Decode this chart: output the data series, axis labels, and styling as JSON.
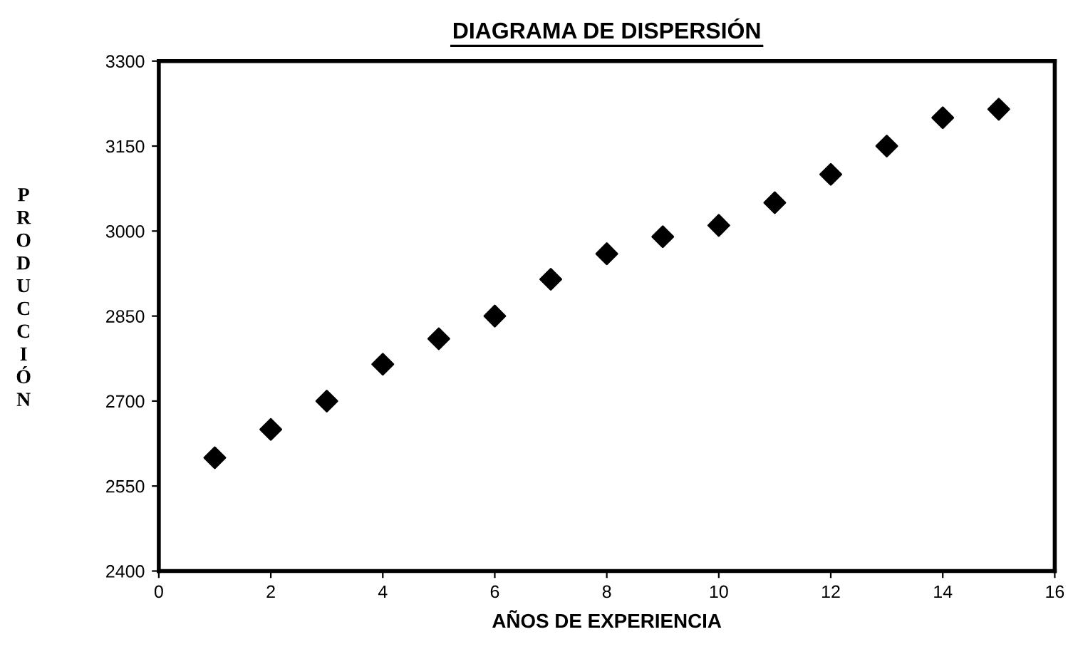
{
  "chart_data": {
    "type": "scatter",
    "title": "DIAGRAMA DE DISPERSIÓN",
    "xlabel": "AÑOS DE EXPERIENCIA",
    "ylabel": "PRODUCCIÓN",
    "x": [
      1,
      2,
      3,
      4,
      5,
      6,
      7,
      8,
      9,
      10,
      11,
      12,
      13,
      14,
      15
    ],
    "series": [
      {
        "color": "#000000",
        "values": [
          2600,
          2650,
          2700,
          2765,
          2810,
          2850,
          2915,
          2960,
          2990,
          3010,
          3050,
          3100,
          3150,
          3200,
          3215
        ]
      }
    ],
    "xlim": [
      0,
      16
    ],
    "xticks": [
      0,
      2,
      4,
      6,
      8,
      10,
      12,
      14,
      16
    ],
    "ylim": [
      2400,
      3300
    ],
    "yticks": [
      2400,
      2550,
      2700,
      2850,
      3000,
      3150,
      3300
    ],
    "marker": "diamond",
    "grid": false,
    "legend": false
  }
}
